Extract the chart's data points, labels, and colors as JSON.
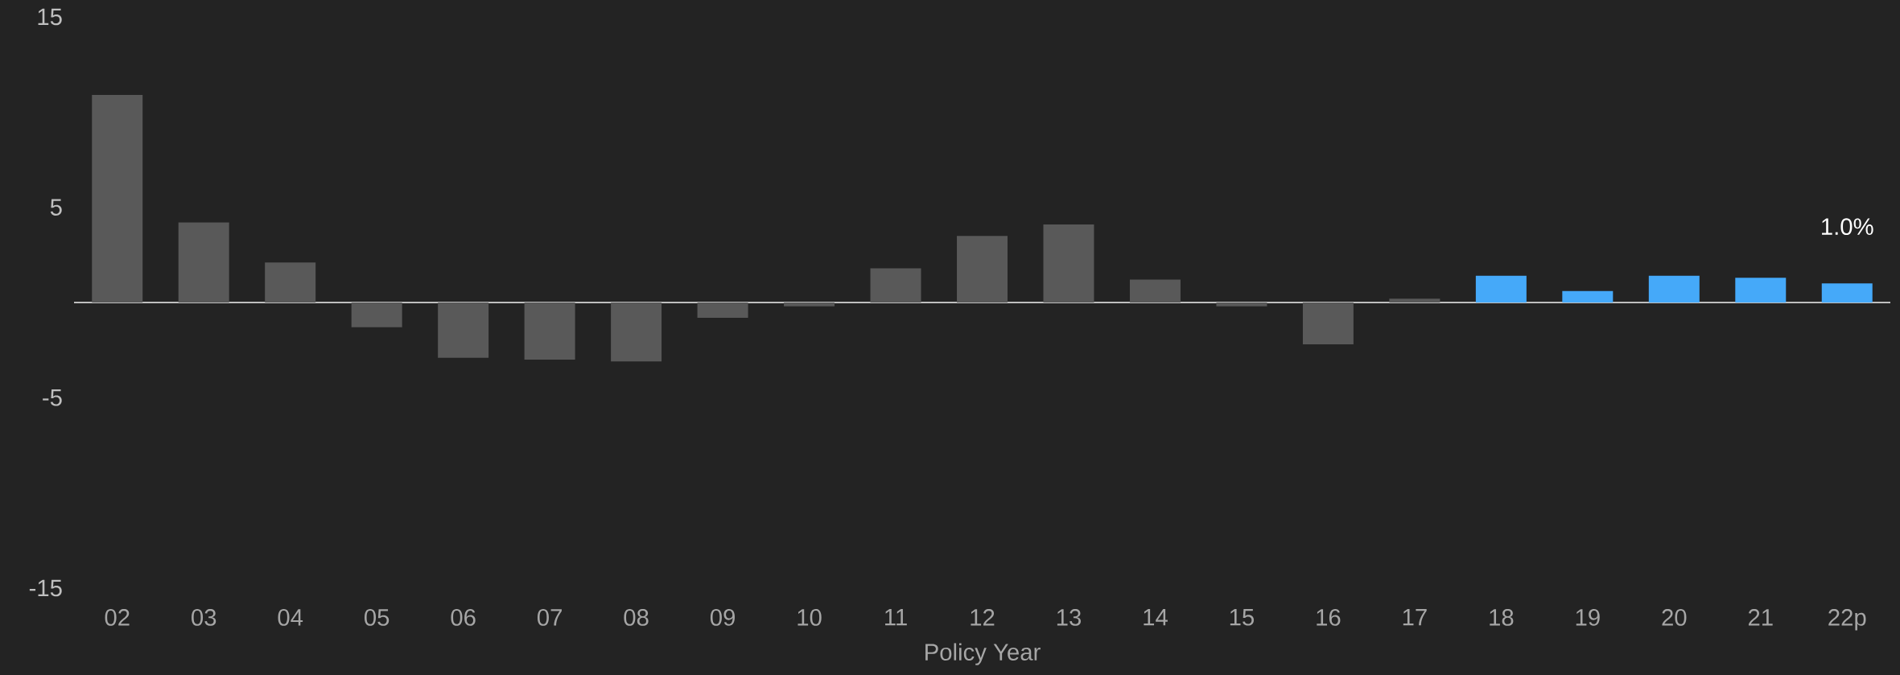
{
  "chart_data": {
    "type": "bar",
    "xlabel": "Policy Year",
    "categories": [
      "02",
      "03",
      "04",
      "05",
      "06",
      "07",
      "08",
      "09",
      "10",
      "11",
      "12",
      "13",
      "14",
      "15",
      "16",
      "17",
      "18",
      "19",
      "20",
      "21",
      "22p"
    ],
    "values": [
      10.9,
      4.2,
      2.1,
      -1.3,
      -2.9,
      -3.0,
      -3.1,
      -0.8,
      -0.2,
      1.8,
      3.5,
      4.1,
      1.2,
      -0.2,
      -2.2,
      0.2,
      1.4,
      0.6,
      1.4,
      1.3,
      1.0
    ],
    "colors": [
      "#595959",
      "#595959",
      "#595959",
      "#595959",
      "#595959",
      "#595959",
      "#595959",
      "#595959",
      "#595959",
      "#595959",
      "#595959",
      "#595959",
      "#595959",
      "#595959",
      "#595959",
      "#595959",
      "#45a9f9",
      "#45a9f9",
      "#45a9f9",
      "#45a9f9",
      "#45a9f9"
    ],
    "value_labels": [
      null,
      null,
      null,
      null,
      null,
      null,
      null,
      null,
      null,
      null,
      null,
      null,
      null,
      null,
      null,
      null,
      null,
      null,
      null,
      null,
      "1.0%"
    ],
    "ylim": [
      -15,
      15
    ],
    "yticks": [
      -15,
      -5,
      5,
      15
    ]
  }
}
